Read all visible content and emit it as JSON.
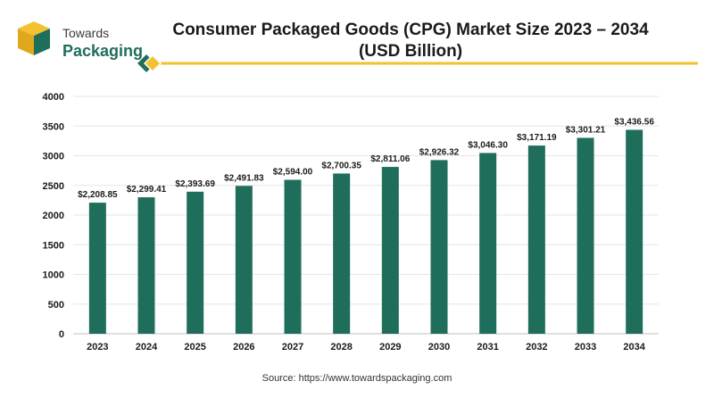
{
  "header": {
    "logo_line1": "Towards",
    "logo_line2": "Packaging",
    "title_line1": "Consumer Packaged Goods (CPG) Market Size 2023 – 2034",
    "title_line2": "(USD Billion)"
  },
  "source": "Source: https://www.towardspackaging.com",
  "colors": {
    "bar": "#1f6e5c",
    "accent_yellow": "#f2c230",
    "logo_green": "#1f6e5c",
    "grid": "#e6e6e6"
  },
  "chart_data": {
    "type": "bar",
    "title": "Consumer Packaged Goods (CPG) Market Size 2023 – 2034 (USD Billion)",
    "categories": [
      "2023",
      "2024",
      "2025",
      "2026",
      "2027",
      "2028",
      "2029",
      "2030",
      "2031",
      "2032",
      "2033",
      "2034"
    ],
    "values": [
      2208.85,
      2299.41,
      2393.69,
      2491.83,
      2594.0,
      2700.35,
      2811.06,
      2926.32,
      3046.3,
      3171.19,
      3301.21,
      3436.56
    ],
    "data_labels": [
      "$2,208.85",
      "$2,299.41",
      "$2,393.69",
      "$2,491.83",
      "$2,594.00",
      "$2,700.35",
      "$2,811.06",
      "$2,926.32",
      "$3,046.30",
      "$3,171.19",
      "$3,301.21",
      "$3,436.56"
    ],
    "yticks": [
      0,
      500,
      1000,
      1500,
      2000,
      2500,
      3000,
      3500,
      4000
    ],
    "ylim": [
      0,
      4000
    ],
    "grid": true,
    "legend": "none",
    "xlabel": "",
    "ylabel": ""
  }
}
